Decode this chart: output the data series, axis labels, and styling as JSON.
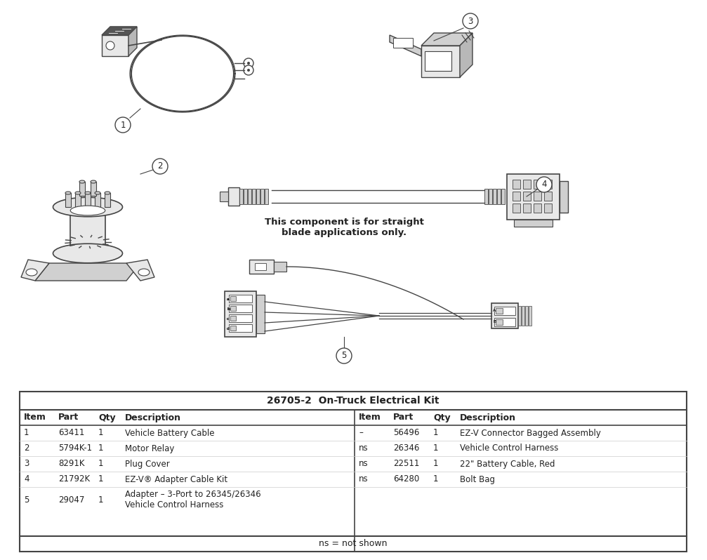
{
  "title": "26705-2  On-Truck Electrical Kit",
  "bg_color": "#ffffff",
  "table_title": "26705-2  On-Truck Electrical Kit",
  "left_columns": [
    "Item",
    "Part",
    "Qty",
    "Description"
  ],
  "right_columns": [
    "Item",
    "Part",
    "Qty",
    "Description"
  ],
  "left_rows": [
    [
      "1",
      "63411",
      "1",
      "Vehicle Battery Cable"
    ],
    [
      "2",
      "5794K-1",
      "1",
      "Motor Relay"
    ],
    [
      "3",
      "8291K",
      "1",
      "Plug Cover"
    ],
    [
      "4",
      "21792K",
      "1",
      "EZ-V® Adapter Cable Kit"
    ],
    [
      "5",
      "29047",
      "1",
      "Adapter – 3-Port to 26345/26346\nVehicle Control Harness"
    ]
  ],
  "right_rows": [
    [
      "–",
      "56496",
      "1",
      "EZ-V Connector Bagged Assembly"
    ],
    [
      "ns",
      "26346",
      "1",
      "Vehicle Control Harness"
    ],
    [
      "ns",
      "22511",
      "1",
      "22\" Battery Cable, Red"
    ],
    [
      "ns",
      "64280",
      "1",
      "Bolt Bag"
    ],
    [
      "",
      "",
      "",
      ""
    ]
  ],
  "footer": "ns = not shown",
  "diagram_note": "This component is for straight\nblade applications only.",
  "line_color": "#444444",
  "light_line": "#888888",
  "text_color": "#222222",
  "fill_light": "#e8e8e8",
  "fill_mid": "#d0d0d0",
  "fill_dark": "#b8b8b8"
}
